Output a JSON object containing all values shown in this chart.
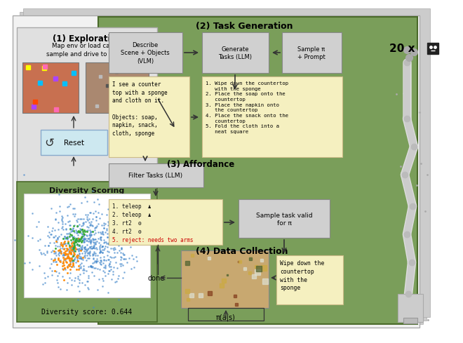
{
  "bg_color": "#ffffff",
  "green_bg": "#7a9e5a",
  "gray_box": "#d0d0d0",
  "light_gray_box": "#e0e0e0",
  "yellow_box": "#f5f0c0",
  "light_blue_box": "#cde8f0",
  "red_text": "#cc0000",
  "arrow_color": "#333333",
  "exploration_title": "(1) Exploration",
  "exploration_text": "Map env or load cache,\nsample and drive to target",
  "reset_label": "Reset",
  "diversity_title": "Diversity Scoring",
  "diversity_score": "Diversity score: 0.644",
  "task_gen_title": "(2) Task Generation",
  "describe_title": "Describe\nScene + Objects\n(VLM)",
  "generate_title": "Generate\nTasks (LLM)",
  "sample_title": "Sample π\n+ Prompt",
  "vlm_text": "I see a counter\ntop with a sponge\nand cloth on it.\n\nObjects: soap,\nnapkin, snack,\ncloth, sponge",
  "tasks_text": "1. Wipe down the countertop\n   with the sponge\n2. Place the soap onto the\n   countertop\n3. Place the napkin onto\n   the countertop\n4. Place the snack onto the\n   countertop\n5. Fold the cloth into a\n   neat square",
  "affordance_title": "(3) Affordance",
  "filter_title": "Filter Tasks (LLM)",
  "aff_line1": "1. teleop",
  "aff_line2": "2. teleop",
  "aff_line3": "3. rt2",
  "aff_line4": "4. rt2",
  "aff_line5": "5. reject: needs two arms",
  "sample_valid": "Sample task valid\nfor π",
  "data_col_title": "(4) Data Collection",
  "wipe_task": "Wipe down the\ncountertop\nwith the\nsponge",
  "pi_label": "π(a|s)",
  "done_label": "done",
  "robot_count": "20 x"
}
